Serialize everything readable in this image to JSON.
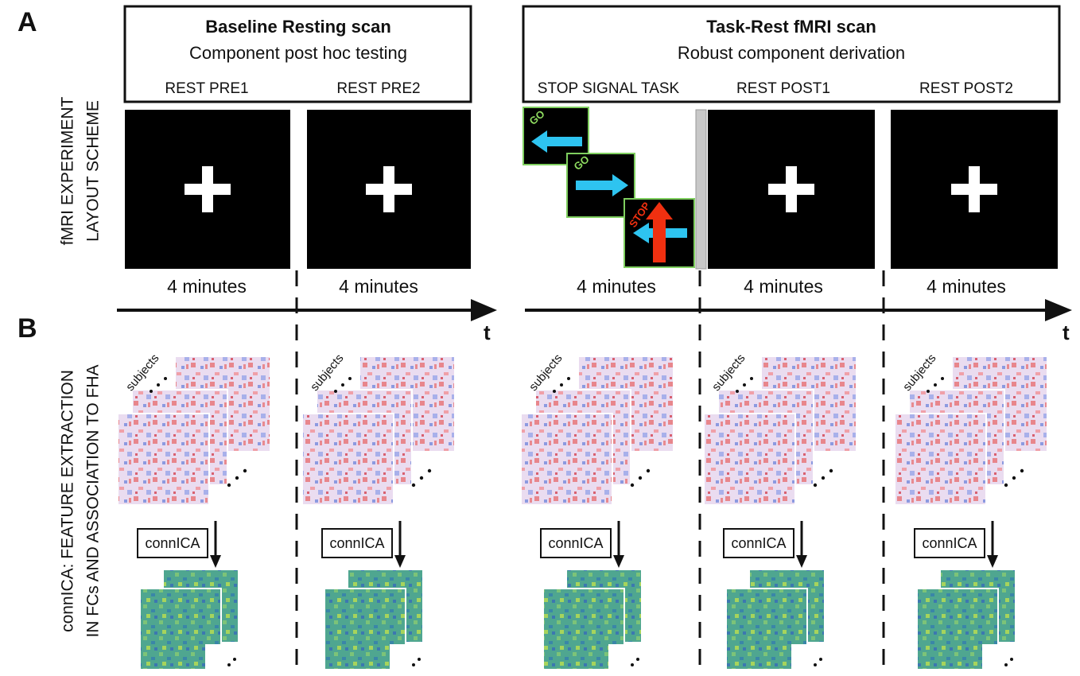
{
  "panel_a": {
    "label": "A",
    "side_title": [
      "fMRI EXPERIMENT",
      "LAYOUT SCHEME"
    ],
    "sections": [
      {
        "title": "Baseline Resting scan",
        "subtitle": "Component post hoc testing",
        "axis_label": "t"
      },
      {
        "title": "Task-Rest fMRI scan",
        "subtitle": "Robust component derivation",
        "axis_label": "t"
      }
    ],
    "scans": [
      {
        "label": "REST PRE1",
        "duration": "4 minutes"
      },
      {
        "label": "REST PRE2",
        "duration": "4 minutes"
      },
      {
        "label": "STOP SIGNAL TASK",
        "duration": "4 minutes"
      },
      {
        "label": "REST POST1",
        "duration": "4 minutes"
      },
      {
        "label": "REST POST2",
        "duration": "4 minutes"
      }
    ],
    "task_cues": [
      "GO",
      "GO",
      "STOP"
    ]
  },
  "panel_b": {
    "label": "B",
    "side_title": [
      "connICA: FEATURE EXTRACTION",
      "IN FCs AND ASSOCIATION TO FHA"
    ],
    "columns": [
      {
        "stack_label": "subjects",
        "method": "connICA"
      },
      {
        "stack_label": "subjects",
        "method": "connICA"
      },
      {
        "stack_label": "subjects",
        "method": "connICA"
      },
      {
        "stack_label": "subjects",
        "method": "connICA"
      },
      {
        "stack_label": "subjects",
        "method": "connICA"
      }
    ]
  }
}
